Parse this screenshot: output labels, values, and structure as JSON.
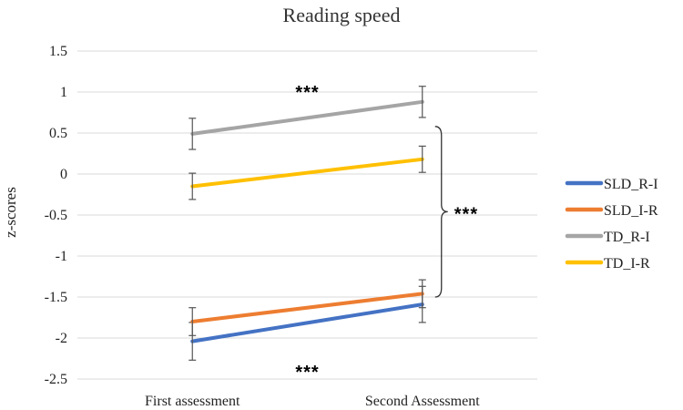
{
  "chart_data": {
    "type": "line",
    "title": "Reading speed",
    "xlabel": "",
    "ylabel": "z-scores",
    "categories": [
      "First assessment",
      "Second Assessment"
    ],
    "ylim": [
      -2.5,
      1.5
    ],
    "yticks": [
      "1.5",
      "1",
      "0.5",
      "0",
      "-0.5",
      "-1",
      "-1.5",
      "-2",
      "-2.5"
    ],
    "ytick_values": [
      1.5,
      1,
      0.5,
      0,
      -0.5,
      -1,
      -1.5,
      -2,
      -2.5
    ],
    "series": [
      {
        "name": "SLD_R-I",
        "color": "#4472C4",
        "values": [
          -2.04,
          -1.59
        ],
        "errors": [
          0.23,
          0.22
        ]
      },
      {
        "name": "SLD_I-R",
        "color": "#ED7D31",
        "values": [
          -1.8,
          -1.46
        ],
        "errors": [
          0.17,
          0.17
        ]
      },
      {
        "name": "TD_R-I",
        "color": "#A5A5A5",
        "values": [
          0.49,
          0.88
        ],
        "errors": [
          0.19,
          0.19
        ]
      },
      {
        "name": "TD_I-R",
        "color": "#FFC000",
        "values": [
          -0.15,
          0.18
        ],
        "errors": [
          0.16,
          0.16
        ]
      }
    ],
    "annotations": [
      {
        "text": "***",
        "position": "above TD lines"
      },
      {
        "text": "***",
        "position": "below SLD lines"
      },
      {
        "text": "***",
        "position": "between-group bracket"
      }
    ]
  }
}
